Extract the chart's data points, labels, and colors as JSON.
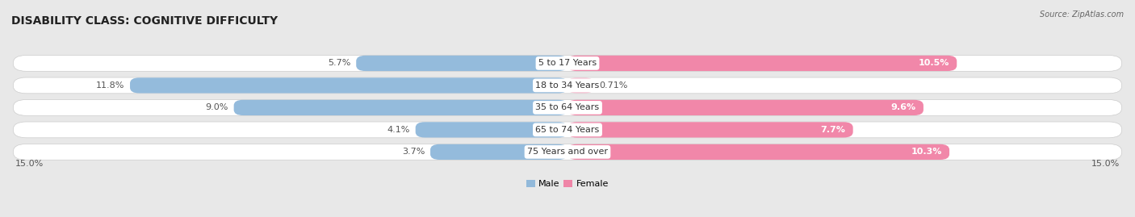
{
  "title": "DISABILITY CLASS: COGNITIVE DIFFICULTY",
  "source": "Source: ZipAtlas.com",
  "categories": [
    "5 to 17 Years",
    "18 to 34 Years",
    "35 to 64 Years",
    "65 to 74 Years",
    "75 Years and over"
  ],
  "male_values": [
    5.7,
    11.8,
    9.0,
    4.1,
    3.7
  ],
  "female_values": [
    10.5,
    0.71,
    9.6,
    7.7,
    10.3
  ],
  "male_color": "#89b4d9",
  "female_color": "#f07aa0",
  "female_color_light": "#f5b8cc",
  "male_label": "Male",
  "female_label": "Female",
  "x_max": 15.0,
  "background_color": "#e8e8e8",
  "bar_bg_color": "#f0f0f0",
  "title_fontsize": 10,
  "label_fontsize": 8,
  "value_fontsize": 8
}
